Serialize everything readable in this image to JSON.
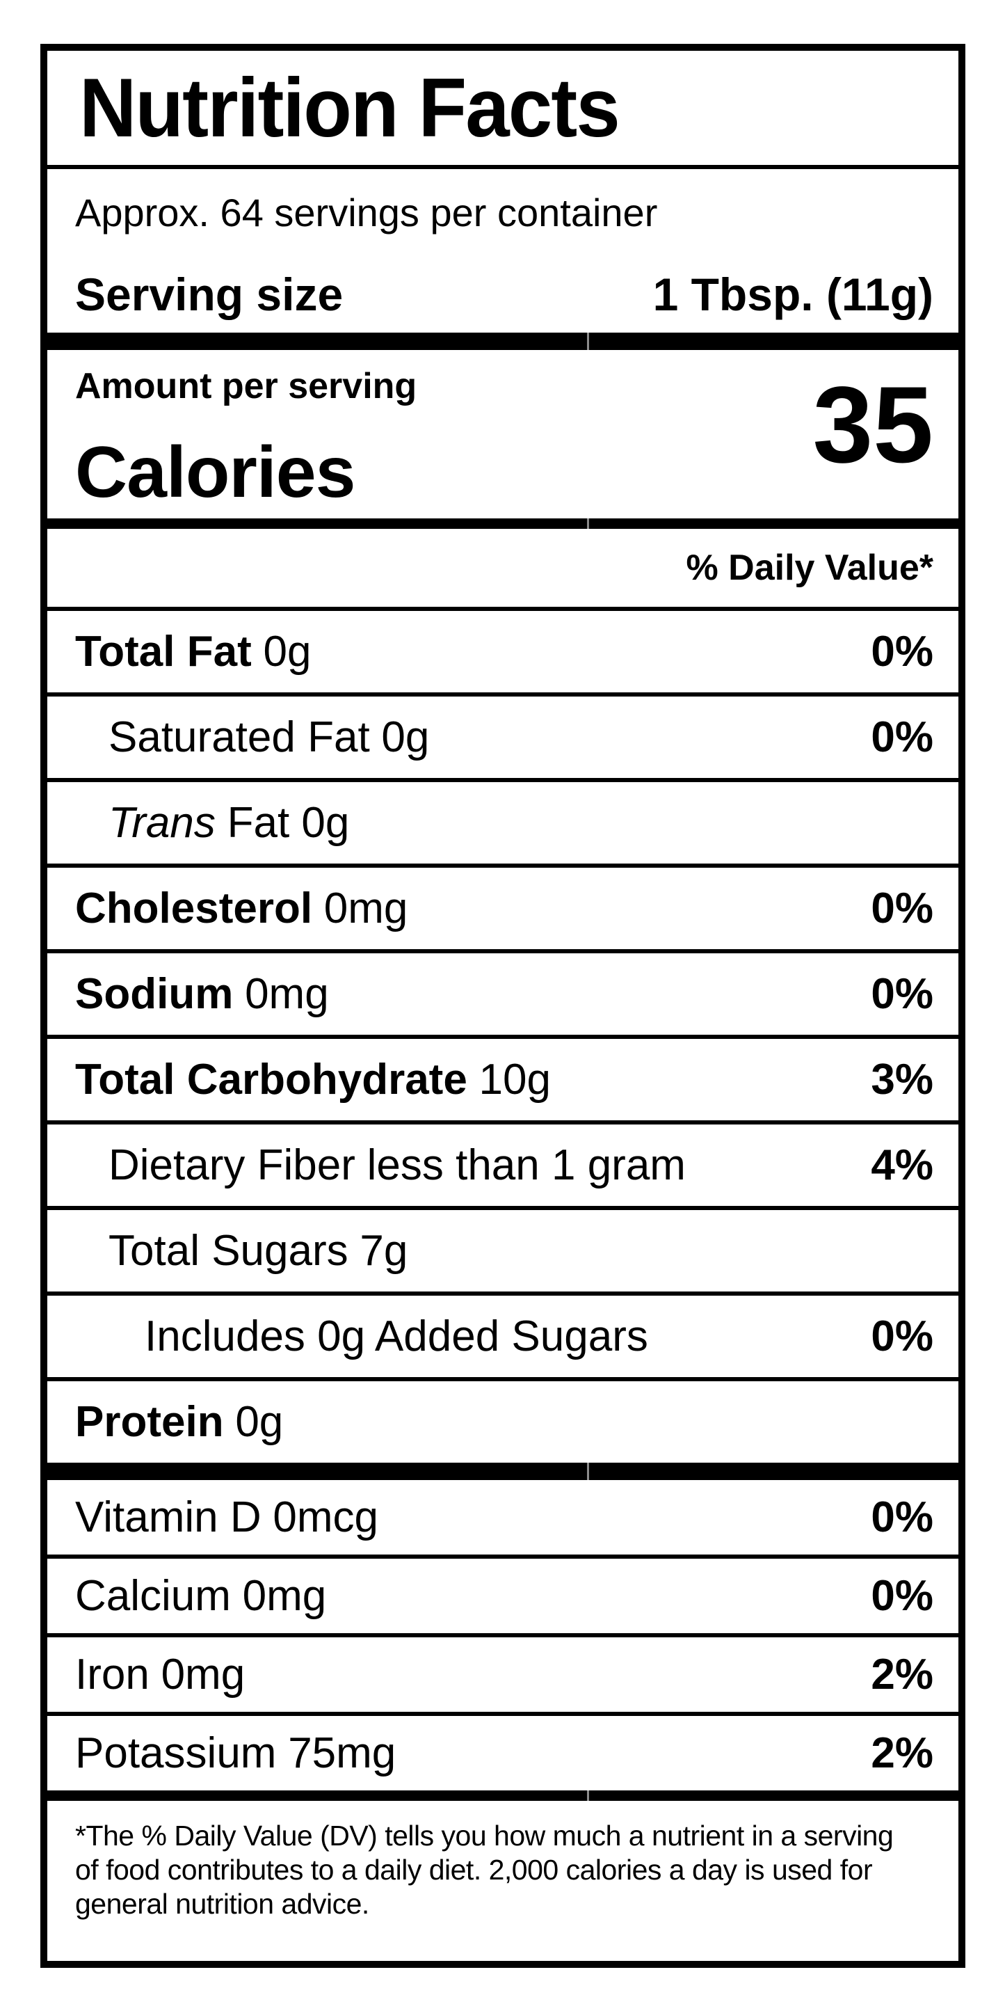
{
  "label": {
    "title": "Nutrition Facts",
    "servings_per_container": "Approx. 64 servings per container",
    "serving_size": {
      "label": "Serving size",
      "value": "1 Tbsp. (11g)"
    },
    "amount_per_serving": "Amount per serving",
    "calories": {
      "label": "Calories",
      "value": "35"
    },
    "daily_value_header": "% Daily Value*",
    "rows": [
      {
        "name": "Total Fat",
        "amount": "0g",
        "percent": "0%"
      },
      {
        "name": "Saturated Fat",
        "amount": "0g",
        "percent": "0%"
      },
      {
        "name": "Trans",
        "amount": "Fat 0g",
        "percent": ""
      },
      {
        "name": "Cholesterol",
        "amount": "0mg",
        "percent": "0%"
      },
      {
        "name": "Sodium",
        "amount": "0mg",
        "percent": "0%"
      },
      {
        "name": "Total Carbohydrate",
        "amount": "10g",
        "percent": "3%"
      },
      {
        "name": "Dietary Fiber",
        "amount": "less than 1 gram",
        "percent": "4%"
      },
      {
        "name": "Total Sugars",
        "amount": "7g",
        "percent": ""
      },
      {
        "name": "Includes 0g Added Sugars",
        "amount": "",
        "percent": "0%"
      },
      {
        "name": "Protein",
        "amount": "0g",
        "percent": ""
      }
    ],
    "vitamins": [
      {
        "name": "Vitamin D",
        "amount": "0mcg",
        "percent": "0%"
      },
      {
        "name": "Calcium",
        "amount": "0mg",
        "percent": "0%"
      },
      {
        "name": "Iron",
        "amount": "0mg",
        "percent": "2%"
      },
      {
        "name": "Potassium",
        "amount": "75mg",
        "percent": "2%"
      }
    ],
    "footnote_lines": [
      "*The % Daily Value (DV) tells you how much a nutrient in a serving",
      "of food contributes to a daily diet. 2,000 calories a day is used for",
      "general nutrition advice."
    ],
    "colors": {
      "ink": "#000000",
      "background": "#ffffff"
    }
  }
}
